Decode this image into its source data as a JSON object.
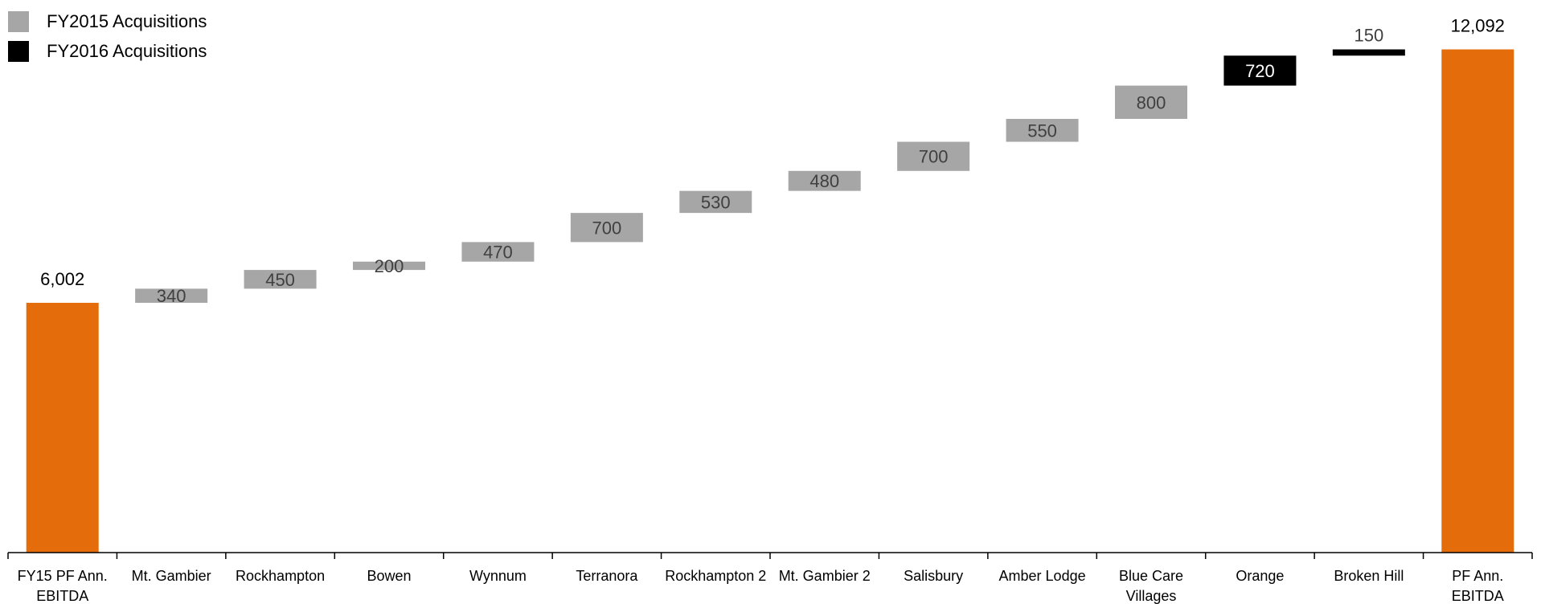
{
  "chart_data": {
    "type": "waterfall",
    "title": "",
    "xlabel": "",
    "ylabel": "",
    "ylim": [
      0,
      12700
    ],
    "grid": false,
    "legend_position": "top-left",
    "legend": [
      {
        "label": "FY2015 Acquisitions",
        "color": "#a6a6a6"
      },
      {
        "label": "FY2016 Acquisitions",
        "color": "#000000"
      }
    ],
    "bars": [
      {
        "category": "FY15 PF Ann. EBITDA",
        "kind": "total",
        "value": 6002,
        "label": "6,002",
        "color": "#e46c0a"
      },
      {
        "category": "Mt. Gambier",
        "kind": "FY2015",
        "value": 340,
        "label": "340",
        "color": "#a6a6a6"
      },
      {
        "category": "Rockhampton",
        "kind": "FY2015",
        "value": 450,
        "label": "450",
        "color": "#a6a6a6"
      },
      {
        "category": "Bowen",
        "kind": "FY2015",
        "value": 200,
        "label": "200",
        "color": "#a6a6a6"
      },
      {
        "category": "Wynnum",
        "kind": "FY2015",
        "value": 470,
        "label": "470",
        "color": "#a6a6a6"
      },
      {
        "category": "Terranora",
        "kind": "FY2015",
        "value": 700,
        "label": "700",
        "color": "#a6a6a6"
      },
      {
        "category": "Rockhampton 2",
        "kind": "FY2015",
        "value": 530,
        "label": "530",
        "color": "#a6a6a6"
      },
      {
        "category": "Mt. Gambier 2",
        "kind": "FY2015",
        "value": 480,
        "label": "480",
        "color": "#a6a6a6"
      },
      {
        "category": "Salisbury",
        "kind": "FY2015",
        "value": 700,
        "label": "700",
        "color": "#a6a6a6"
      },
      {
        "category": "Amber Lodge",
        "kind": "FY2015",
        "value": 550,
        "label": "550",
        "color": "#a6a6a6"
      },
      {
        "category": "Blue Care Villages",
        "kind": "FY2015",
        "value": 800,
        "label": "800",
        "color": "#a6a6a6"
      },
      {
        "category": "Orange",
        "kind": "FY2016",
        "value": 720,
        "label": "720",
        "color": "#000000"
      },
      {
        "category": "Broken Hill",
        "kind": "FY2016",
        "value": 150,
        "label": "150",
        "color": "#000000"
      },
      {
        "category": "PF Ann. EBITDA",
        "kind": "total",
        "value": 12092,
        "label": "12,092",
        "color": "#e46c0a"
      }
    ]
  }
}
